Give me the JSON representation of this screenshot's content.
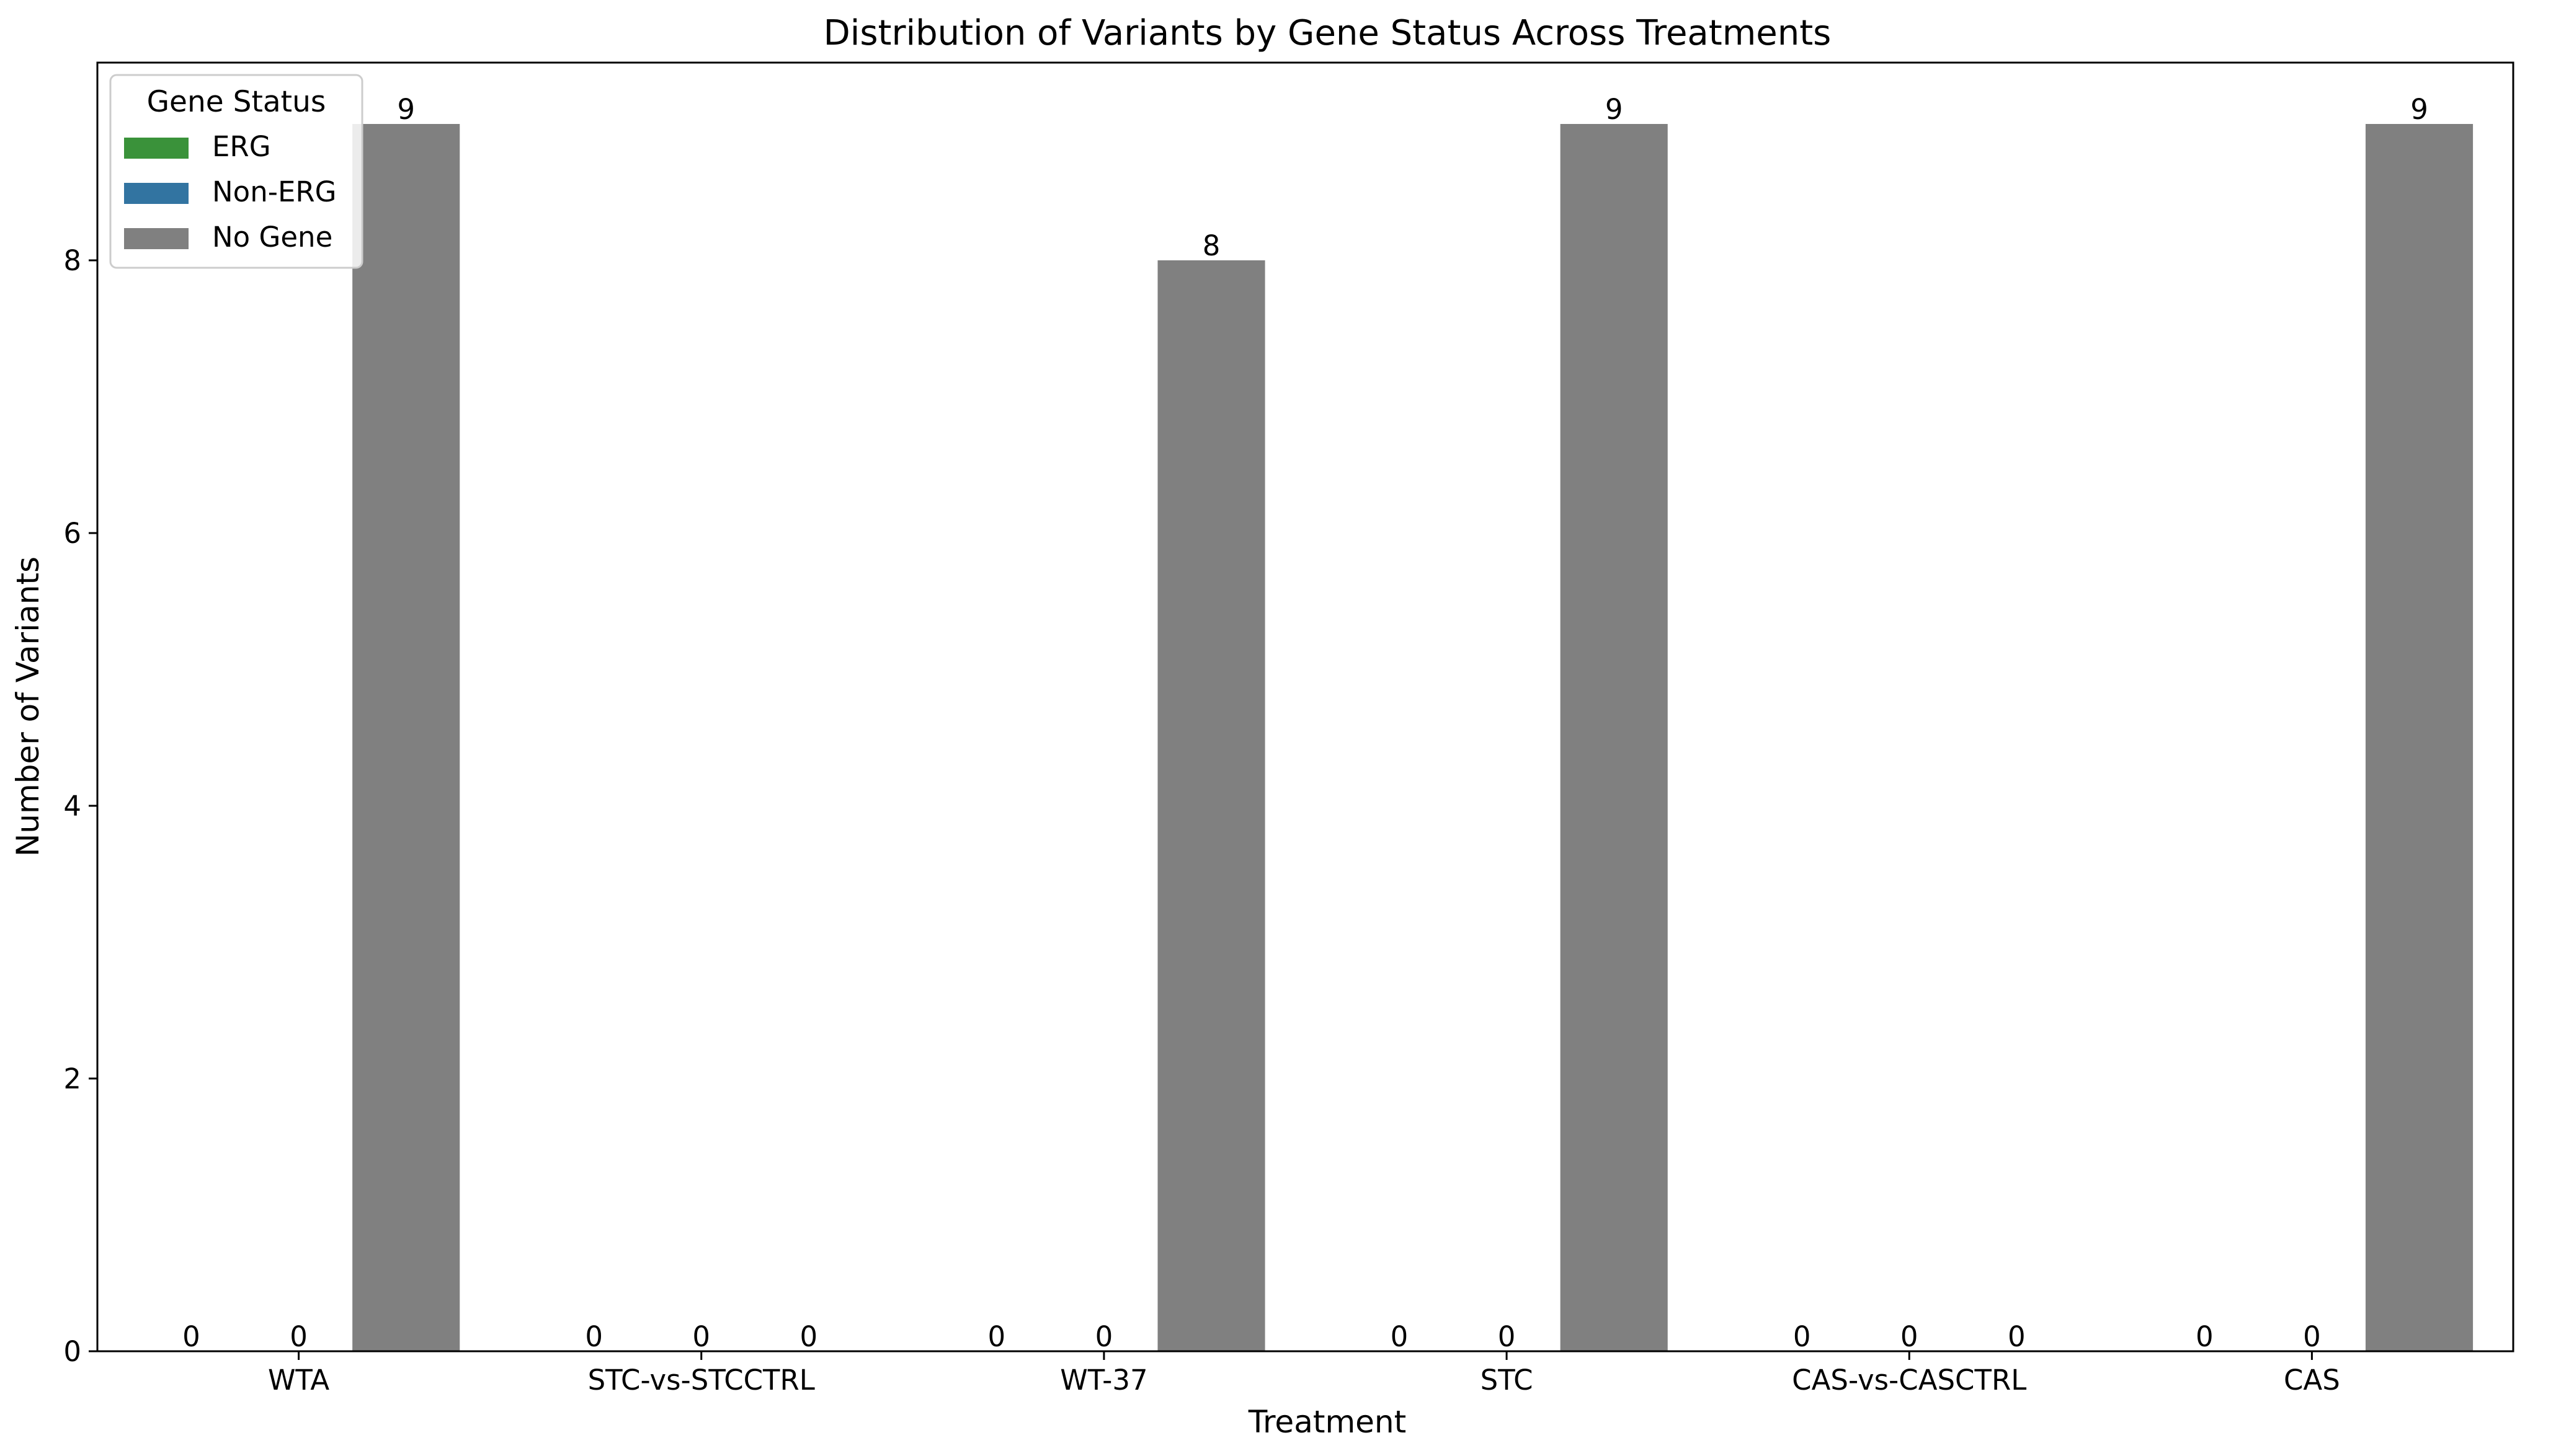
{
  "chart_data": {
    "type": "bar",
    "title": "Distribution of Variants by Gene Status Across Treatments",
    "xlabel": "Treatment",
    "ylabel": "Number of Variants",
    "categories": [
      "WTA",
      "STC-vs-STCCTRL",
      "WT-37",
      "STC",
      "CAS-vs-CASCTRL",
      "CAS"
    ],
    "series": [
      {
        "name": "ERG",
        "color": "#3a923a",
        "values": [
          0,
          0,
          0,
          0,
          0,
          0
        ]
      },
      {
        "name": "Non-ERG",
        "color": "#3274a1",
        "values": [
          0,
          0,
          0,
          0,
          0,
          0
        ]
      },
      {
        "name": "No Gene",
        "color": "#808080",
        "values": [
          9,
          0,
          8,
          9,
          0,
          9
        ]
      }
    ],
    "ylim": [
      0,
      9.45
    ],
    "yticks": [
      0,
      2,
      4,
      6,
      8
    ],
    "grid": false,
    "legend": {
      "title": "Gene Status",
      "placement": "top-left"
    }
  }
}
